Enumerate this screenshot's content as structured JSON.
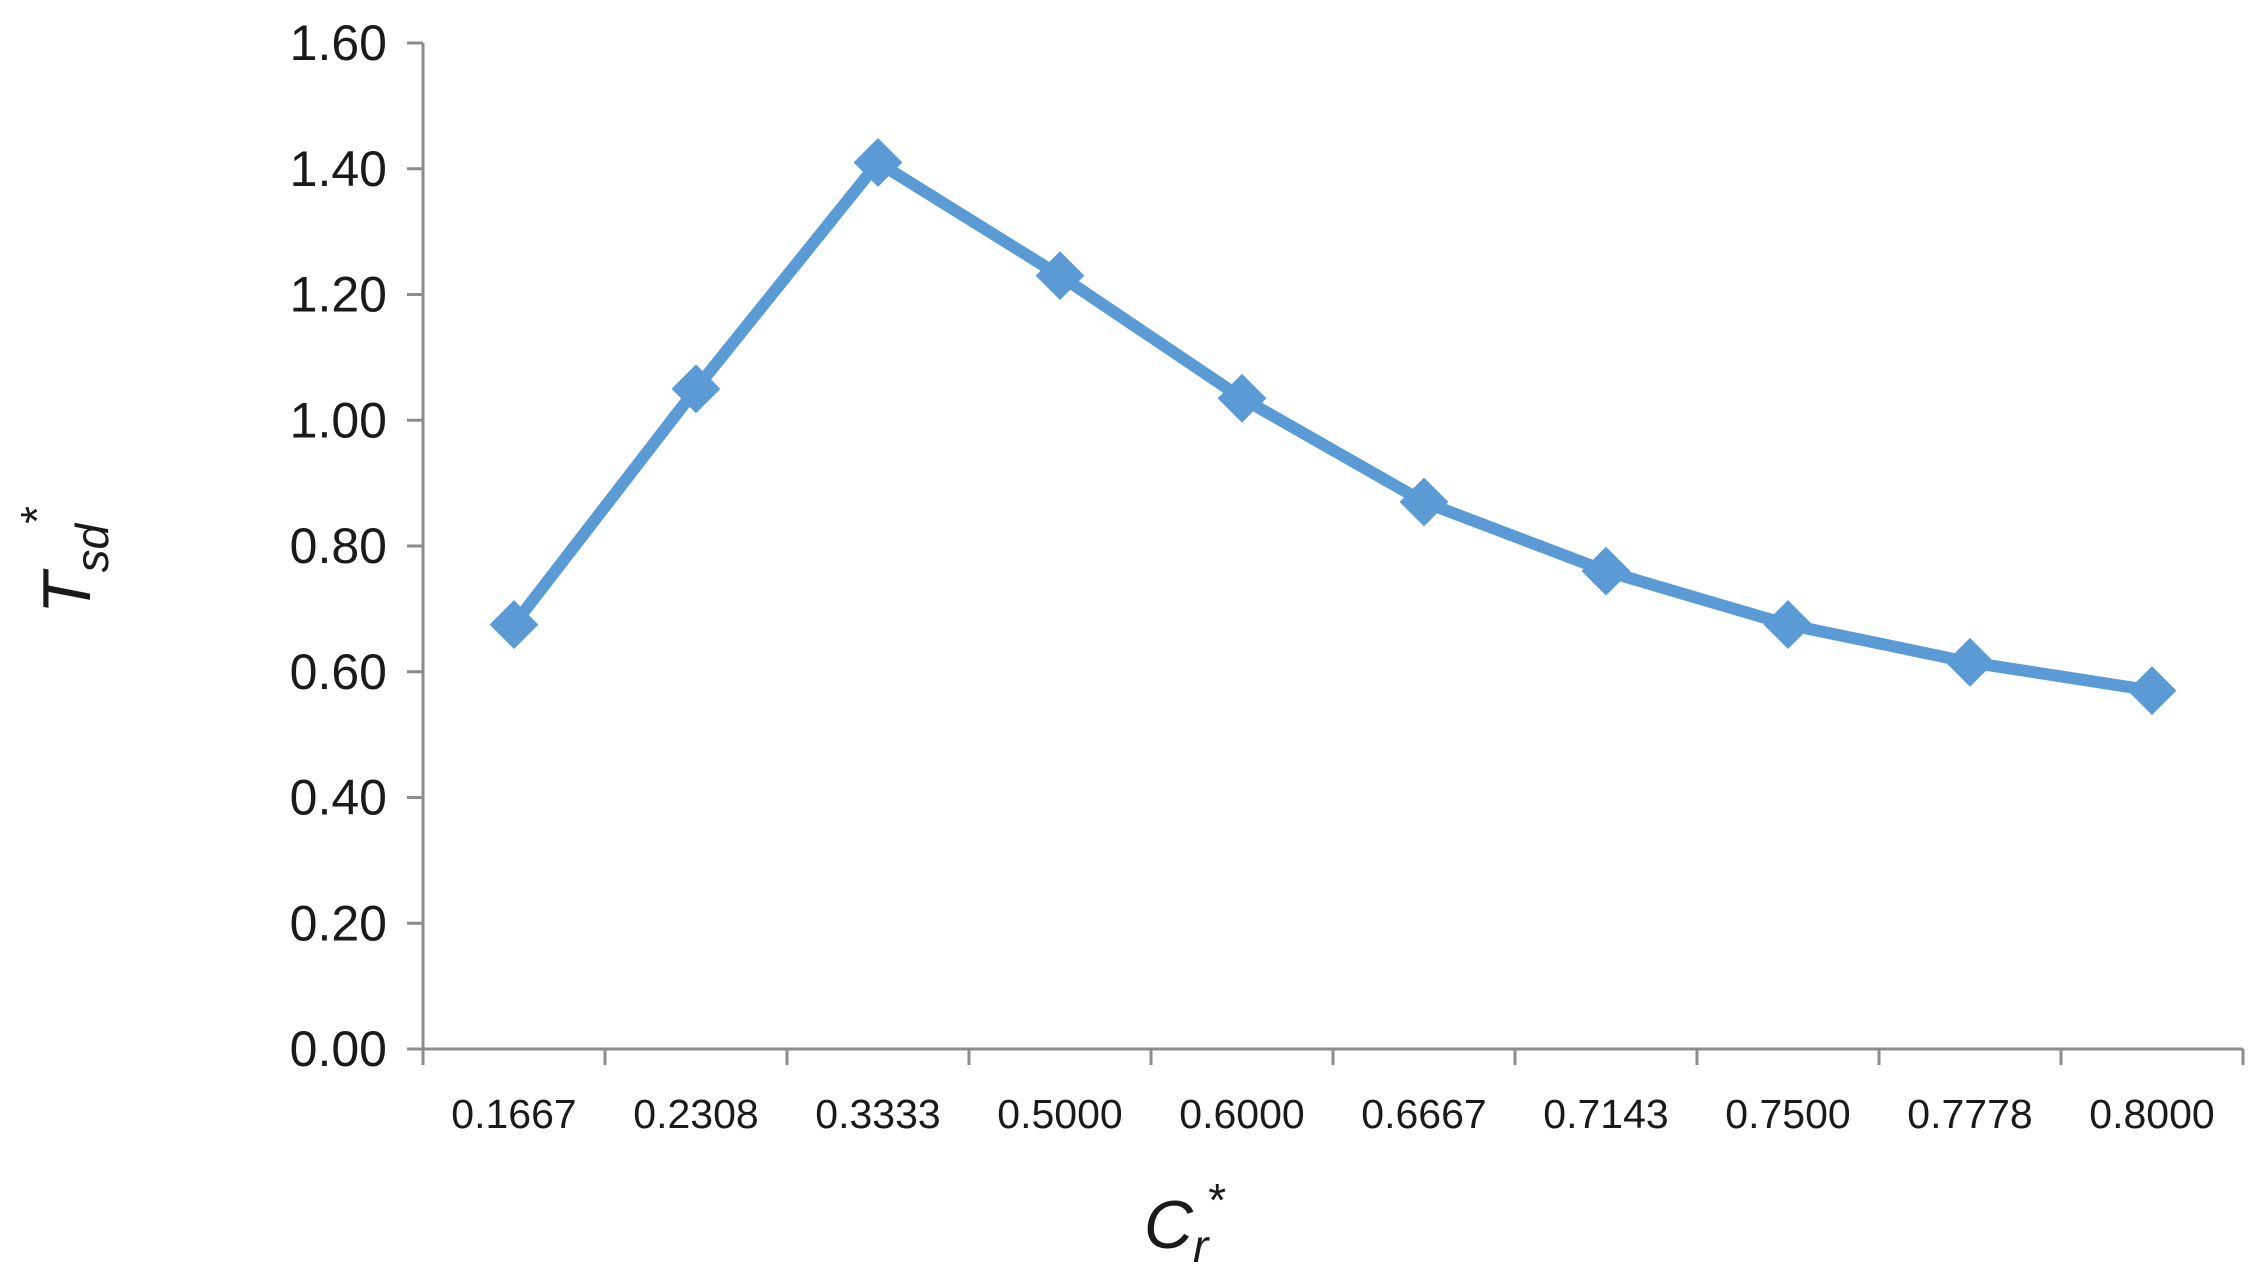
{
  "chart_data": {
    "type": "line",
    "title": "",
    "xlabel": {
      "main": "C",
      "sub": "r",
      "sup": "*"
    },
    "ylabel": {
      "main": "T",
      "sub": "sd",
      "sup": "*"
    },
    "categories": [
      "0.1667",
      "0.2308",
      "0.3333",
      "0.5000",
      "0.6000",
      "0.6667",
      "0.7143",
      "0.7500",
      "0.7778",
      "0.8000"
    ],
    "series": [
      {
        "values": [
          0.675,
          1.05,
          1.41,
          1.23,
          1.035,
          0.87,
          0.76,
          0.675,
          0.615,
          0.57
        ],
        "color": "#5B9BD5",
        "marker": "diamond"
      }
    ],
    "ylim": [
      0,
      1.6
    ],
    "yticks": [
      "0.00",
      "0.20",
      "0.40",
      "0.60",
      "0.80",
      "1.00",
      "1.20",
      "1.40",
      "1.60"
    ],
    "grid": false,
    "legend": "none"
  }
}
